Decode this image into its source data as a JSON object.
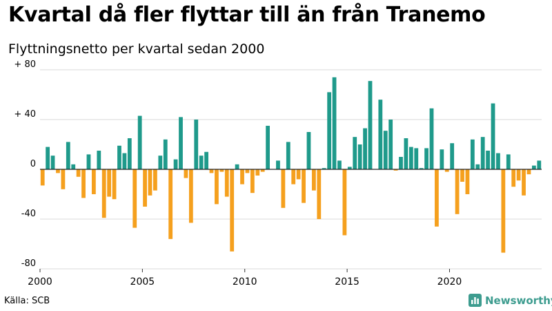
{
  "title": "Kvartal då fler flyttar till än från Tranemo",
  "subtitle": "Flyttningsnetto per kvartal sedan 2000",
  "source": "Källa: SCB",
  "brand": "Newsworthy",
  "colors": {
    "positive": "#1f9a8b",
    "negative": "#f5a01e",
    "grid": "#d8d8d8",
    "zero": "#222222",
    "brand": "#3d9c8f"
  },
  "chart_data": {
    "type": "bar",
    "title": "",
    "xlabel": "",
    "ylabel": "",
    "ylim": [
      -80,
      80
    ],
    "y_ticks": [
      80,
      40,
      0,
      -40,
      -80
    ],
    "y_tick_labels": [
      "+ 80",
      "+ 40",
      "0",
      "-40",
      "-80"
    ],
    "x_ticks": [
      "2000",
      "2005",
      "2010",
      "2015",
      "2020"
    ],
    "start_year": 2000,
    "grid": true,
    "legend": "none",
    "values": [
      -13,
      18,
      11,
      -3,
      -16,
      22,
      4,
      -6,
      -23,
      12,
      -20,
      15,
      -39,
      -22,
      -24,
      19,
      13,
      25,
      -47,
      43,
      -30,
      -21,
      -17,
      11,
      24,
      -56,
      8,
      42,
      -7,
      -43,
      40,
      11,
      14,
      -3,
      -28,
      -2,
      -22,
      -66,
      4,
      -12,
      -3,
      -19,
      -5,
      -2,
      35,
      0,
      7,
      -31,
      22,
      -12,
      -8,
      -27,
      30,
      -17,
      -40,
      1,
      62,
      74,
      7,
      -53,
      2,
      26,
      20,
      33,
      71,
      0,
      56,
      31,
      40,
      -1,
      10,
      25,
      18,
      17,
      1,
      17,
      49,
      -46,
      16,
      -2,
      21,
      -36,
      -10,
      -20,
      24,
      4,
      26,
      15,
      53,
      13,
      -67,
      12,
      -14,
      -9,
      -21,
      -4,
      3,
      7
    ]
  }
}
